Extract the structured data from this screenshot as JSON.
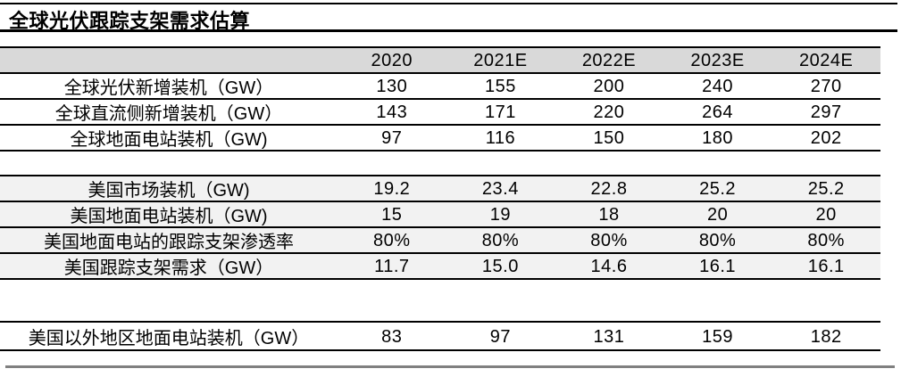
{
  "page": {
    "title": "全球光伏跟踪支架需求估算"
  },
  "colors": {
    "header_row_bg": "#d9d9d9",
    "us_section_row_bg": "#f2f2f2",
    "table_border": "#000000",
    "bottom_rule": "#808080",
    "text": "#000000"
  },
  "chart_data": {
    "type": "table",
    "title": "全球光伏跟踪支架需求估算",
    "columns": [
      "2020",
      "2021E",
      "2022E",
      "2023E",
      "2024E"
    ],
    "rows": [
      {
        "label": "全球光伏新增装机（GW）",
        "values": [
          "130",
          "155",
          "200",
          "240",
          "270"
        ]
      },
      {
        "label": "全球直流侧新增装机（GW）",
        "values": [
          "143",
          "171",
          "220",
          "264",
          "297"
        ]
      },
      {
        "label": "全球地面电站装机（GW)",
        "values": [
          "97",
          "116",
          "150",
          "180",
          "202"
        ]
      },
      {
        "label": "美国市场装机（GW)",
        "values": [
          "19.2",
          "23.4",
          "22.8",
          "25.2",
          "25.2"
        ]
      },
      {
        "label": "美国地面电站装机（GW)",
        "values": [
          "15",
          "19",
          "18",
          "20",
          "20"
        ]
      },
      {
        "label": "美国地面电站的跟踪支架渗透率",
        "values": [
          "80%",
          "80%",
          "80%",
          "80%",
          "80%"
        ]
      },
      {
        "label": "美国跟踪支架需求（GW）",
        "values": [
          "11.7",
          "15.0",
          "14.6",
          "16.1",
          "16.1"
        ]
      },
      {
        "label": "美国以外地区地面电站装机（GW）",
        "values": [
          "83",
          "97",
          "131",
          "159",
          "182"
        ]
      }
    ],
    "layout": {
      "sections": [
        [
          0,
          1,
          2
        ],
        [
          3,
          4,
          5,
          6
        ],
        [
          7
        ]
      ],
      "grid": "horizontal-rules-only",
      "header_alignment": "center",
      "value_alignment": "center"
    }
  }
}
